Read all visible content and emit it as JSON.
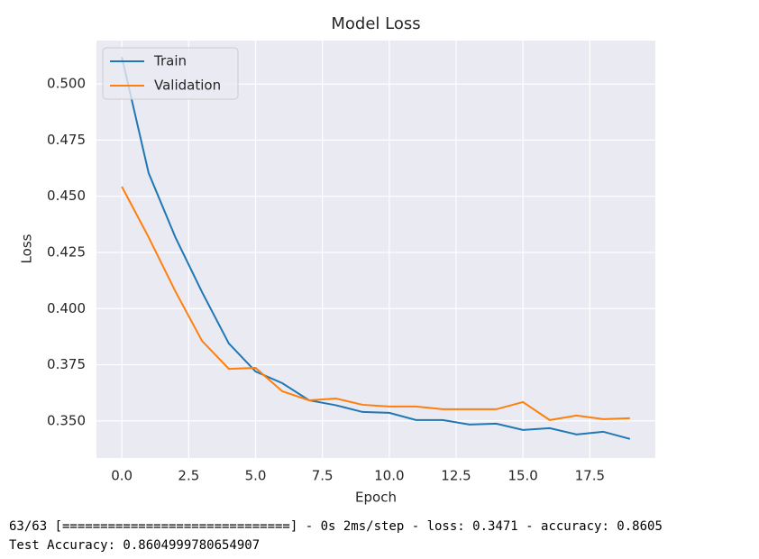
{
  "chart_data": {
    "type": "line",
    "title": "Model Loss",
    "x_label": "Epoch",
    "y_label": "Loss",
    "x": [
      0,
      1,
      2,
      3,
      4,
      5,
      6,
      7,
      8,
      9,
      10,
      11,
      12,
      13,
      14,
      15,
      16,
      17,
      18,
      19
    ],
    "series": [
      {
        "name": "Train",
        "color": "#1f77b4",
        "values": [
          0.512,
          0.4604,
          0.4318,
          0.4073,
          0.3845,
          0.372,
          0.3668,
          0.3592,
          0.357,
          0.354,
          0.3536,
          0.3504,
          0.3504,
          0.3484,
          0.3488,
          0.346,
          0.3468,
          0.344,
          0.3452,
          0.342
        ]
      },
      {
        "name": "Validation",
        "color": "#ff7f0e",
        "values": [
          0.4543,
          0.4318,
          0.4077,
          0.3856,
          0.3732,
          0.3736,
          0.3632,
          0.3592,
          0.36,
          0.3572,
          0.3564,
          0.3564,
          0.3552,
          0.3552,
          0.3552,
          0.3584,
          0.3504,
          0.3524,
          0.3508,
          0.3512
        ]
      }
    ],
    "xlim": [
      -0.95,
      19.95
    ],
    "ylim": [
      0.3335,
      0.5193
    ],
    "xticks": [
      {
        "value": 0,
        "label": "0.0"
      },
      2.5,
      {
        "value": 5,
        "label": "5.0"
      },
      7.5,
      {
        "value": 10,
        "label": "10.0"
      },
      12.5,
      {
        "value": 15,
        "label": "15.0"
      },
      17.5
    ],
    "yticks": [
      {
        "value": 0.35,
        "label": "0.350"
      },
      0.375,
      {
        "value": 0.4,
        "label": "0.400"
      },
      0.425,
      {
        "value": 0.45,
        "label": "0.450"
      },
      0.475,
      {
        "value": 0.5,
        "label": "0.500"
      }
    ],
    "grid": true,
    "legend": "upper left"
  },
  "console": {
    "lines": [
      "63/63 [==============================] - 0s 2ms/step - loss: 0.3471 - accuracy: 0.8605",
      "Test Accuracy: 0.8604999780654907"
    ]
  }
}
